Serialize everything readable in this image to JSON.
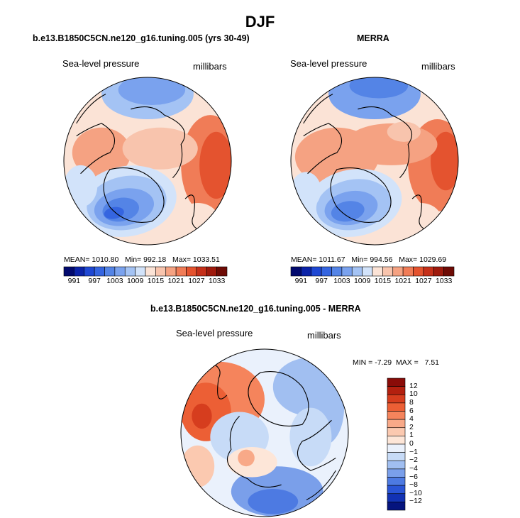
{
  "main_title": "DJF",
  "chart_data": [
    {
      "type": "heatmap",
      "title": "b.e13.B1850C5CN.ne120_g16.tuning.005 (yrs 30-49)",
      "field_label": "Sea-level pressure",
      "units": "millibars",
      "projection": "north polar stereographic",
      "stats": {
        "mean_label": "MEAN=",
        "mean": "1010.80",
        "min_label": "Min=",
        "min": "992.18",
        "max_label": "Max=",
        "max": "1033.51"
      },
      "colorbar": {
        "orientation": "horizontal",
        "levels": [
          991,
          994,
          997,
          1000,
          1003,
          1006,
          1009,
          1012,
          1015,
          1018,
          1021,
          1024,
          1027,
          1030,
          1033
        ],
        "tick_labels": [
          "991",
          "997",
          "1003",
          "1009",
          "1015",
          "1021",
          "1027",
          "1033"
        ],
        "colors": [
          "#020a6e",
          "#0b23a8",
          "#1f48d3",
          "#3565e0",
          "#5484e6",
          "#7aa2ee",
          "#a4c3f4",
          "#d2e3fa",
          "#fbe3d6",
          "#f8c4ad",
          "#f5a282",
          "#f07c57",
          "#e4532f",
          "#c5301a",
          "#9e1a0d",
          "#6e0b05"
        ]
      }
    },
    {
      "type": "heatmap",
      "title": "MERRA",
      "field_label": "Sea-level pressure",
      "units": "millibars",
      "projection": "north polar stereographic",
      "stats": {
        "mean_label": "MEAN=",
        "mean": "1011.67",
        "min_label": "Min=",
        "min": "994.56",
        "max_label": "Max=",
        "max": "1029.69"
      },
      "colorbar": {
        "orientation": "horizontal",
        "levels": [
          991,
          994,
          997,
          1000,
          1003,
          1006,
          1009,
          1012,
          1015,
          1018,
          1021,
          1024,
          1027,
          1030,
          1033
        ],
        "tick_labels": [
          "991",
          "997",
          "1003",
          "1009",
          "1015",
          "1021",
          "1027",
          "1033"
        ],
        "colors": [
          "#020a6e",
          "#0b23a8",
          "#1f48d3",
          "#3565e0",
          "#5484e6",
          "#7aa2ee",
          "#a4c3f4",
          "#d2e3fa",
          "#fbe3d6",
          "#f8c4ad",
          "#f5a282",
          "#f07c57",
          "#e4532f",
          "#c5301a",
          "#9e1a0d",
          "#6e0b05"
        ]
      }
    },
    {
      "type": "heatmap",
      "title": "b.e13.B1850C5CN.ne120_g16.tuning.005 - MERRA",
      "field_label": "Sea-level pressure",
      "units": "millibars",
      "projection": "north polar stereographic",
      "stats": {
        "min_label": "MIN =",
        "min": "-7.29",
        "max_label": "MAX =",
        "max": "7.51"
      },
      "colorbar": {
        "orientation": "vertical",
        "levels": [
          12,
          10,
          8,
          6,
          4,
          2,
          1,
          0,
          -1,
          -2,
          -4,
          -6,
          -8,
          -10,
          -12
        ],
        "tick_labels": [
          "12",
          "10",
          "8",
          "6",
          "4",
          "2",
          "1",
          "0",
          "−1",
          "−2",
          "−4",
          "−6",
          "−8",
          "−10",
          "−12"
        ],
        "colors": [
          "#8a0c08",
          "#b3200f",
          "#d63d1e",
          "#ec5f35",
          "#f5845c",
          "#f8a988",
          "#fbc9b0",
          "#fde6d8",
          "#eaf1fc",
          "#c7dbf7",
          "#a1bff1",
          "#7a9fea",
          "#4d7ae2",
          "#2a55d6",
          "#1232b4",
          "#05147e"
        ]
      }
    }
  ]
}
